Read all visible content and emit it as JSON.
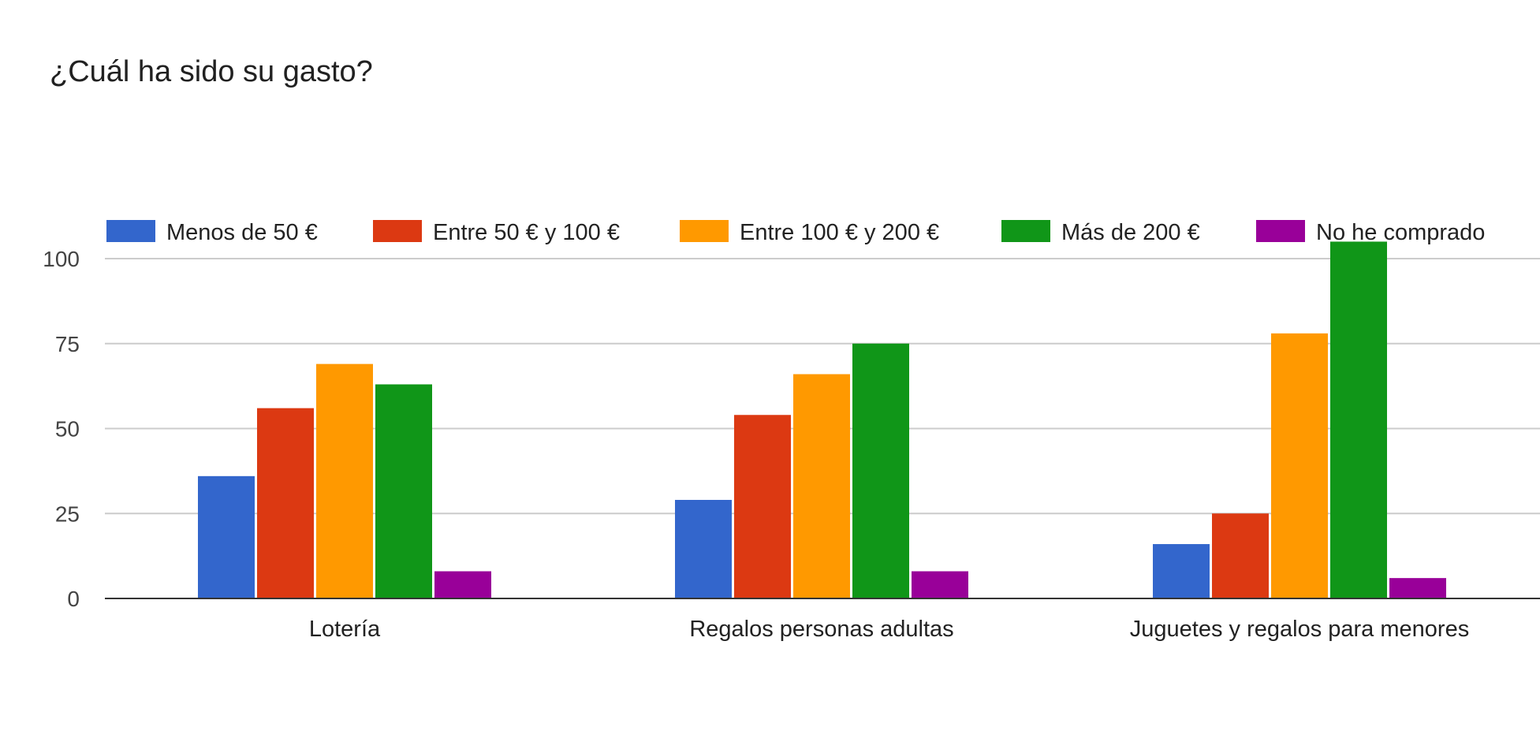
{
  "chart_data": {
    "type": "bar",
    "title": "¿Cuál ha sido su gasto?",
    "categories": [
      "Lotería",
      "Regalos personas adultas",
      "Juguetes y regalos para menores"
    ],
    "series": [
      {
        "name": "Menos de 50 €",
        "color": "#3366cc",
        "values": [
          36,
          29,
          16
        ]
      },
      {
        "name": "Entre 50 € y 100 €",
        "color": "#dc3912",
        "values": [
          56,
          54,
          25
        ]
      },
      {
        "name": "Entre 100 € y 200 €",
        "color": "#ff9900",
        "values": [
          69,
          66,
          78
        ]
      },
      {
        "name": "Más de 200 €",
        "color": "#109618",
        "values": [
          63,
          75,
          105
        ]
      },
      {
        "name": "No he comprado",
        "color": "#990099",
        "values": [
          8,
          8,
          6
        ]
      }
    ],
    "y_ticks": [
      0,
      25,
      50,
      75,
      100
    ],
    "ylim": [
      0,
      105
    ],
    "xlabel": "",
    "ylabel": "",
    "grid": true,
    "legend_position": "top"
  }
}
